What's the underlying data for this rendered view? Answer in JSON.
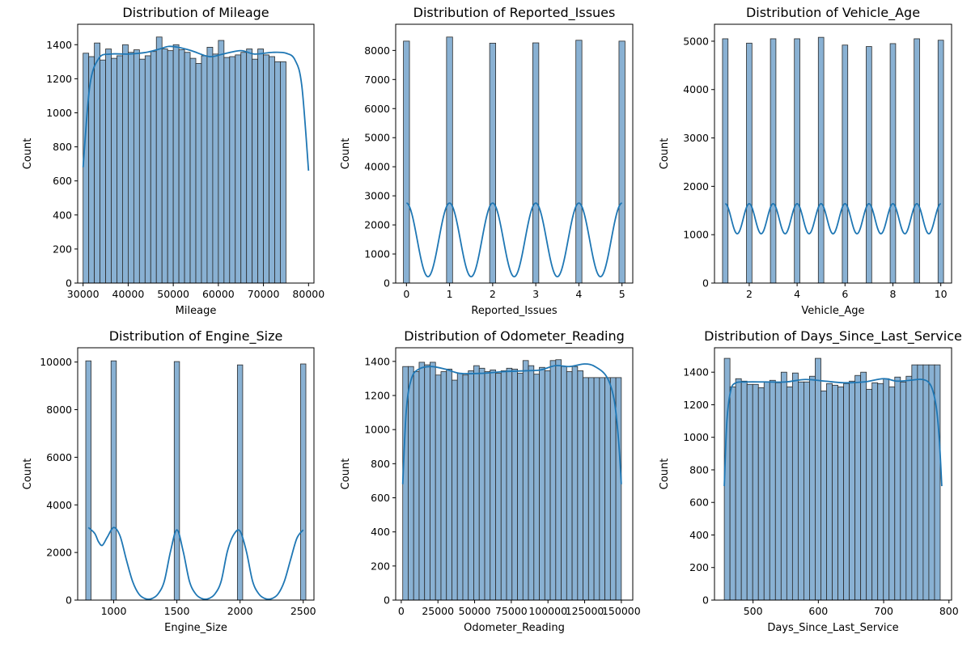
{
  "figure": {
    "background": "#ffffff"
  },
  "style": {
    "bar_fill": "#89b1d3",
    "bar_stroke": "#2a2a2a",
    "kde_color": "#1f77b4"
  },
  "chart_data": [
    {
      "type": "bar",
      "title": "Distribution of Mileage",
      "xlabel": "Mileage",
      "ylabel": "Count",
      "xlim": [
        28800,
        81200
      ],
      "ylim": [
        0,
        1520
      ],
      "xticks": [
        30000,
        40000,
        50000,
        60000,
        70000,
        80000
      ],
      "yticks": [
        0,
        200,
        400,
        600,
        800,
        1000,
        1200,
        1400
      ],
      "bins": {
        "start": 30000,
        "width": 1250
      },
      "values": [
        1350,
        1330,
        1410,
        1310,
        1375,
        1320,
        1335,
        1400,
        1355,
        1370,
        1315,
        1335,
        1360,
        1445,
        1375,
        1365,
        1400,
        1370,
        1355,
        1320,
        1290,
        1335,
        1385,
        1345,
        1425,
        1325,
        1330,
        1340,
        1355,
        1375,
        1315,
        1375,
        1340,
        1330,
        1300,
        1300
      ],
      "kde": [
        [
          30000,
          680
        ],
        [
          31500,
          1160
        ],
        [
          33500,
          1320
        ],
        [
          36000,
          1345
        ],
        [
          40000,
          1345
        ],
        [
          44000,
          1355
        ],
        [
          47000,
          1375
        ],
        [
          49000,
          1390
        ],
        [
          51000,
          1385
        ],
        [
          54000,
          1365
        ],
        [
          58000,
          1330
        ],
        [
          61000,
          1345
        ],
        [
          65000,
          1365
        ],
        [
          68000,
          1345
        ],
        [
          72000,
          1355
        ],
        [
          75000,
          1350
        ],
        [
          77000,
          1310
        ],
        [
          78500,
          1160
        ],
        [
          80000,
          660
        ]
      ]
    },
    {
      "type": "bar",
      "title": "Distribution of Reported_Issues",
      "xlabel": "Reported_Issues",
      "ylabel": "Count",
      "xlim": [
        -0.25,
        5.25
      ],
      "ylim": [
        0,
        8900
      ],
      "xticks": [
        0,
        1,
        2,
        3,
        4,
        5
      ],
      "yticks": [
        0,
        1000,
        2000,
        3000,
        4000,
        5000,
        6000,
        7000,
        8000
      ],
      "bars": [
        {
          "x": 0,
          "value": 8320
        },
        {
          "x": 1,
          "value": 8460
        },
        {
          "x": 2,
          "value": 8250
        },
        {
          "x": 3,
          "value": 8260
        },
        {
          "x": 4,
          "value": 8350
        },
        {
          "x": 5,
          "value": 8320
        }
      ],
      "bar_width": 0.14,
      "kde_periodic": {
        "peaks": [
          0,
          1,
          2,
          3,
          4,
          5
        ],
        "peak": 2750,
        "trough": 220
      }
    },
    {
      "type": "bar",
      "title": "Distribution of Vehicle_Age",
      "xlabel": "Vehicle_Age",
      "ylabel": "Count",
      "xlim": [
        0.55,
        10.45
      ],
      "ylim": [
        0,
        5350
      ],
      "xticks": [
        2,
        4,
        6,
        8,
        10
      ],
      "yticks": [
        0,
        1000,
        2000,
        3000,
        4000,
        5000
      ],
      "bars": [
        {
          "x": 1,
          "value": 5050
        },
        {
          "x": 2,
          "value": 4960
        },
        {
          "x": 3,
          "value": 5050
        },
        {
          "x": 4,
          "value": 5050
        },
        {
          "x": 5,
          "value": 5080
        },
        {
          "x": 6,
          "value": 4920
        },
        {
          "x": 7,
          "value": 4890
        },
        {
          "x": 8,
          "value": 4950
        },
        {
          "x": 9,
          "value": 5050
        },
        {
          "x": 10,
          "value": 5020
        }
      ],
      "bar_width": 0.23,
      "kde_periodic": {
        "peaks": [
          1,
          2,
          3,
          4,
          5,
          6,
          7,
          8,
          9,
          10
        ],
        "peak": 1640,
        "trough": 1020
      }
    },
    {
      "type": "bar",
      "title": "Distribution of Engine_Size",
      "xlabel": "Engine_Size",
      "ylabel": "Count",
      "xlim": [
        715,
        2585
      ],
      "ylim": [
        0,
        10600
      ],
      "xticks": [
        1000,
        1500,
        2000,
        2500
      ],
      "yticks": [
        0,
        2000,
        4000,
        6000,
        8000,
        10000
      ],
      "bars": [
        {
          "x": 800,
          "value": 10050
        },
        {
          "x": 1000,
          "value": 10050
        },
        {
          "x": 1500,
          "value": 10020
        },
        {
          "x": 2000,
          "value": 9880
        },
        {
          "x": 2500,
          "value": 9920
        }
      ],
      "bar_width": 42,
      "kde": [
        [
          800,
          3050
        ],
        [
          850,
          2800
        ],
        [
          880,
          2450
        ],
        [
          910,
          2300
        ],
        [
          950,
          2650
        ],
        [
          1000,
          3050
        ],
        [
          1050,
          2700
        ],
        [
          1100,
          1700
        ],
        [
          1150,
          780
        ],
        [
          1200,
          250
        ],
        [
          1250,
          60
        ],
        [
          1300,
          60
        ],
        [
          1350,
          250
        ],
        [
          1400,
          780
        ],
        [
          1450,
          2050
        ],
        [
          1500,
          2950
        ],
        [
          1550,
          2050
        ],
        [
          1600,
          780
        ],
        [
          1650,
          250
        ],
        [
          1700,
          60
        ],
        [
          1750,
          60
        ],
        [
          1800,
          250
        ],
        [
          1850,
          780
        ],
        [
          1900,
          2050
        ],
        [
          1950,
          2750
        ],
        [
          2000,
          2900
        ],
        [
          2050,
          2050
        ],
        [
          2100,
          780
        ],
        [
          2150,
          250
        ],
        [
          2200,
          60
        ],
        [
          2250,
          60
        ],
        [
          2300,
          250
        ],
        [
          2350,
          780
        ],
        [
          2400,
          1700
        ],
        [
          2450,
          2600
        ],
        [
          2500,
          2950
        ]
      ]
    },
    {
      "type": "bar",
      "title": "Distribution of Odometer_Reading",
      "xlabel": "Odometer_Reading",
      "ylabel": "Count",
      "xlim": [
        -3800,
        157800
      ],
      "ylim": [
        0,
        1480
      ],
      "xticks": [
        0,
        25000,
        50000,
        75000,
        100000,
        125000,
        150000
      ],
      "yticks": [
        0,
        200,
        400,
        600,
        800,
        1000,
        1200,
        1400
      ],
      "bins": {
        "start": 1000,
        "width": 3725
      },
      "values": [
        1370,
        1370,
        1340,
        1395,
        1380,
        1395,
        1320,
        1340,
        1355,
        1290,
        1330,
        1320,
        1345,
        1375,
        1360,
        1340,
        1350,
        1330,
        1345,
        1360,
        1355,
        1330,
        1405,
        1375,
        1325,
        1365,
        1345,
        1405,
        1410,
        1370,
        1340,
        1370,
        1345,
        1305,
        1305,
        1305,
        1305,
        1305,
        1305,
        1305
      ],
      "kde": [
        [
          1000,
          680
        ],
        [
          3500,
          1120
        ],
        [
          7000,
          1300
        ],
        [
          12000,
          1355
        ],
        [
          20000,
          1370
        ],
        [
          30000,
          1355
        ],
        [
          40000,
          1330
        ],
        [
          55000,
          1330
        ],
        [
          70000,
          1340
        ],
        [
          85000,
          1345
        ],
        [
          95000,
          1350
        ],
        [
          105000,
          1375
        ],
        [
          115000,
          1370
        ],
        [
          125000,
          1385
        ],
        [
          132000,
          1370
        ],
        [
          140000,
          1310
        ],
        [
          145000,
          1180
        ],
        [
          148000,
          950
        ],
        [
          150000,
          680
        ]
      ]
    },
    {
      "type": "bar",
      "title": "Distribution of Days_Since_Last_Service",
      "xlabel": "Days_Since_Last_Service",
      "ylabel": "Count",
      "xlim": [
        441,
        804
      ],
      "ylim": [
        0,
        1550
      ],
      "xticks": [
        500,
        600,
        700,
        800
      ],
      "yticks": [
        0,
        200,
        400,
        600,
        800,
        1000,
        1200,
        1400
      ],
      "bins": {
        "start": 456,
        "width": 8.7
      },
      "values": [
        1485,
        1310,
        1360,
        1345,
        1325,
        1325,
        1305,
        1340,
        1350,
        1335,
        1400,
        1310,
        1395,
        1340,
        1340,
        1375,
        1485,
        1285,
        1330,
        1320,
        1310,
        1330,
        1345,
        1380,
        1400,
        1295,
        1335,
        1330,
        1360,
        1310,
        1370,
        1340,
        1375,
        1445,
        1445,
        1445,
        1445,
        1445
      ],
      "kde": [
        [
          456,
          700
        ],
        [
          460,
          1100
        ],
        [
          466,
          1290
        ],
        [
          474,
          1335
        ],
        [
          490,
          1340
        ],
        [
          520,
          1340
        ],
        [
          550,
          1340
        ],
        [
          580,
          1355
        ],
        [
          610,
          1345
        ],
        [
          640,
          1335
        ],
        [
          670,
          1340
        ],
        [
          700,
          1360
        ],
        [
          720,
          1345
        ],
        [
          740,
          1350
        ],
        [
          760,
          1355
        ],
        [
          772,
          1320
        ],
        [
          780,
          1200
        ],
        [
          785,
          1000
        ],
        [
          789,
          700
        ]
      ]
    }
  ]
}
